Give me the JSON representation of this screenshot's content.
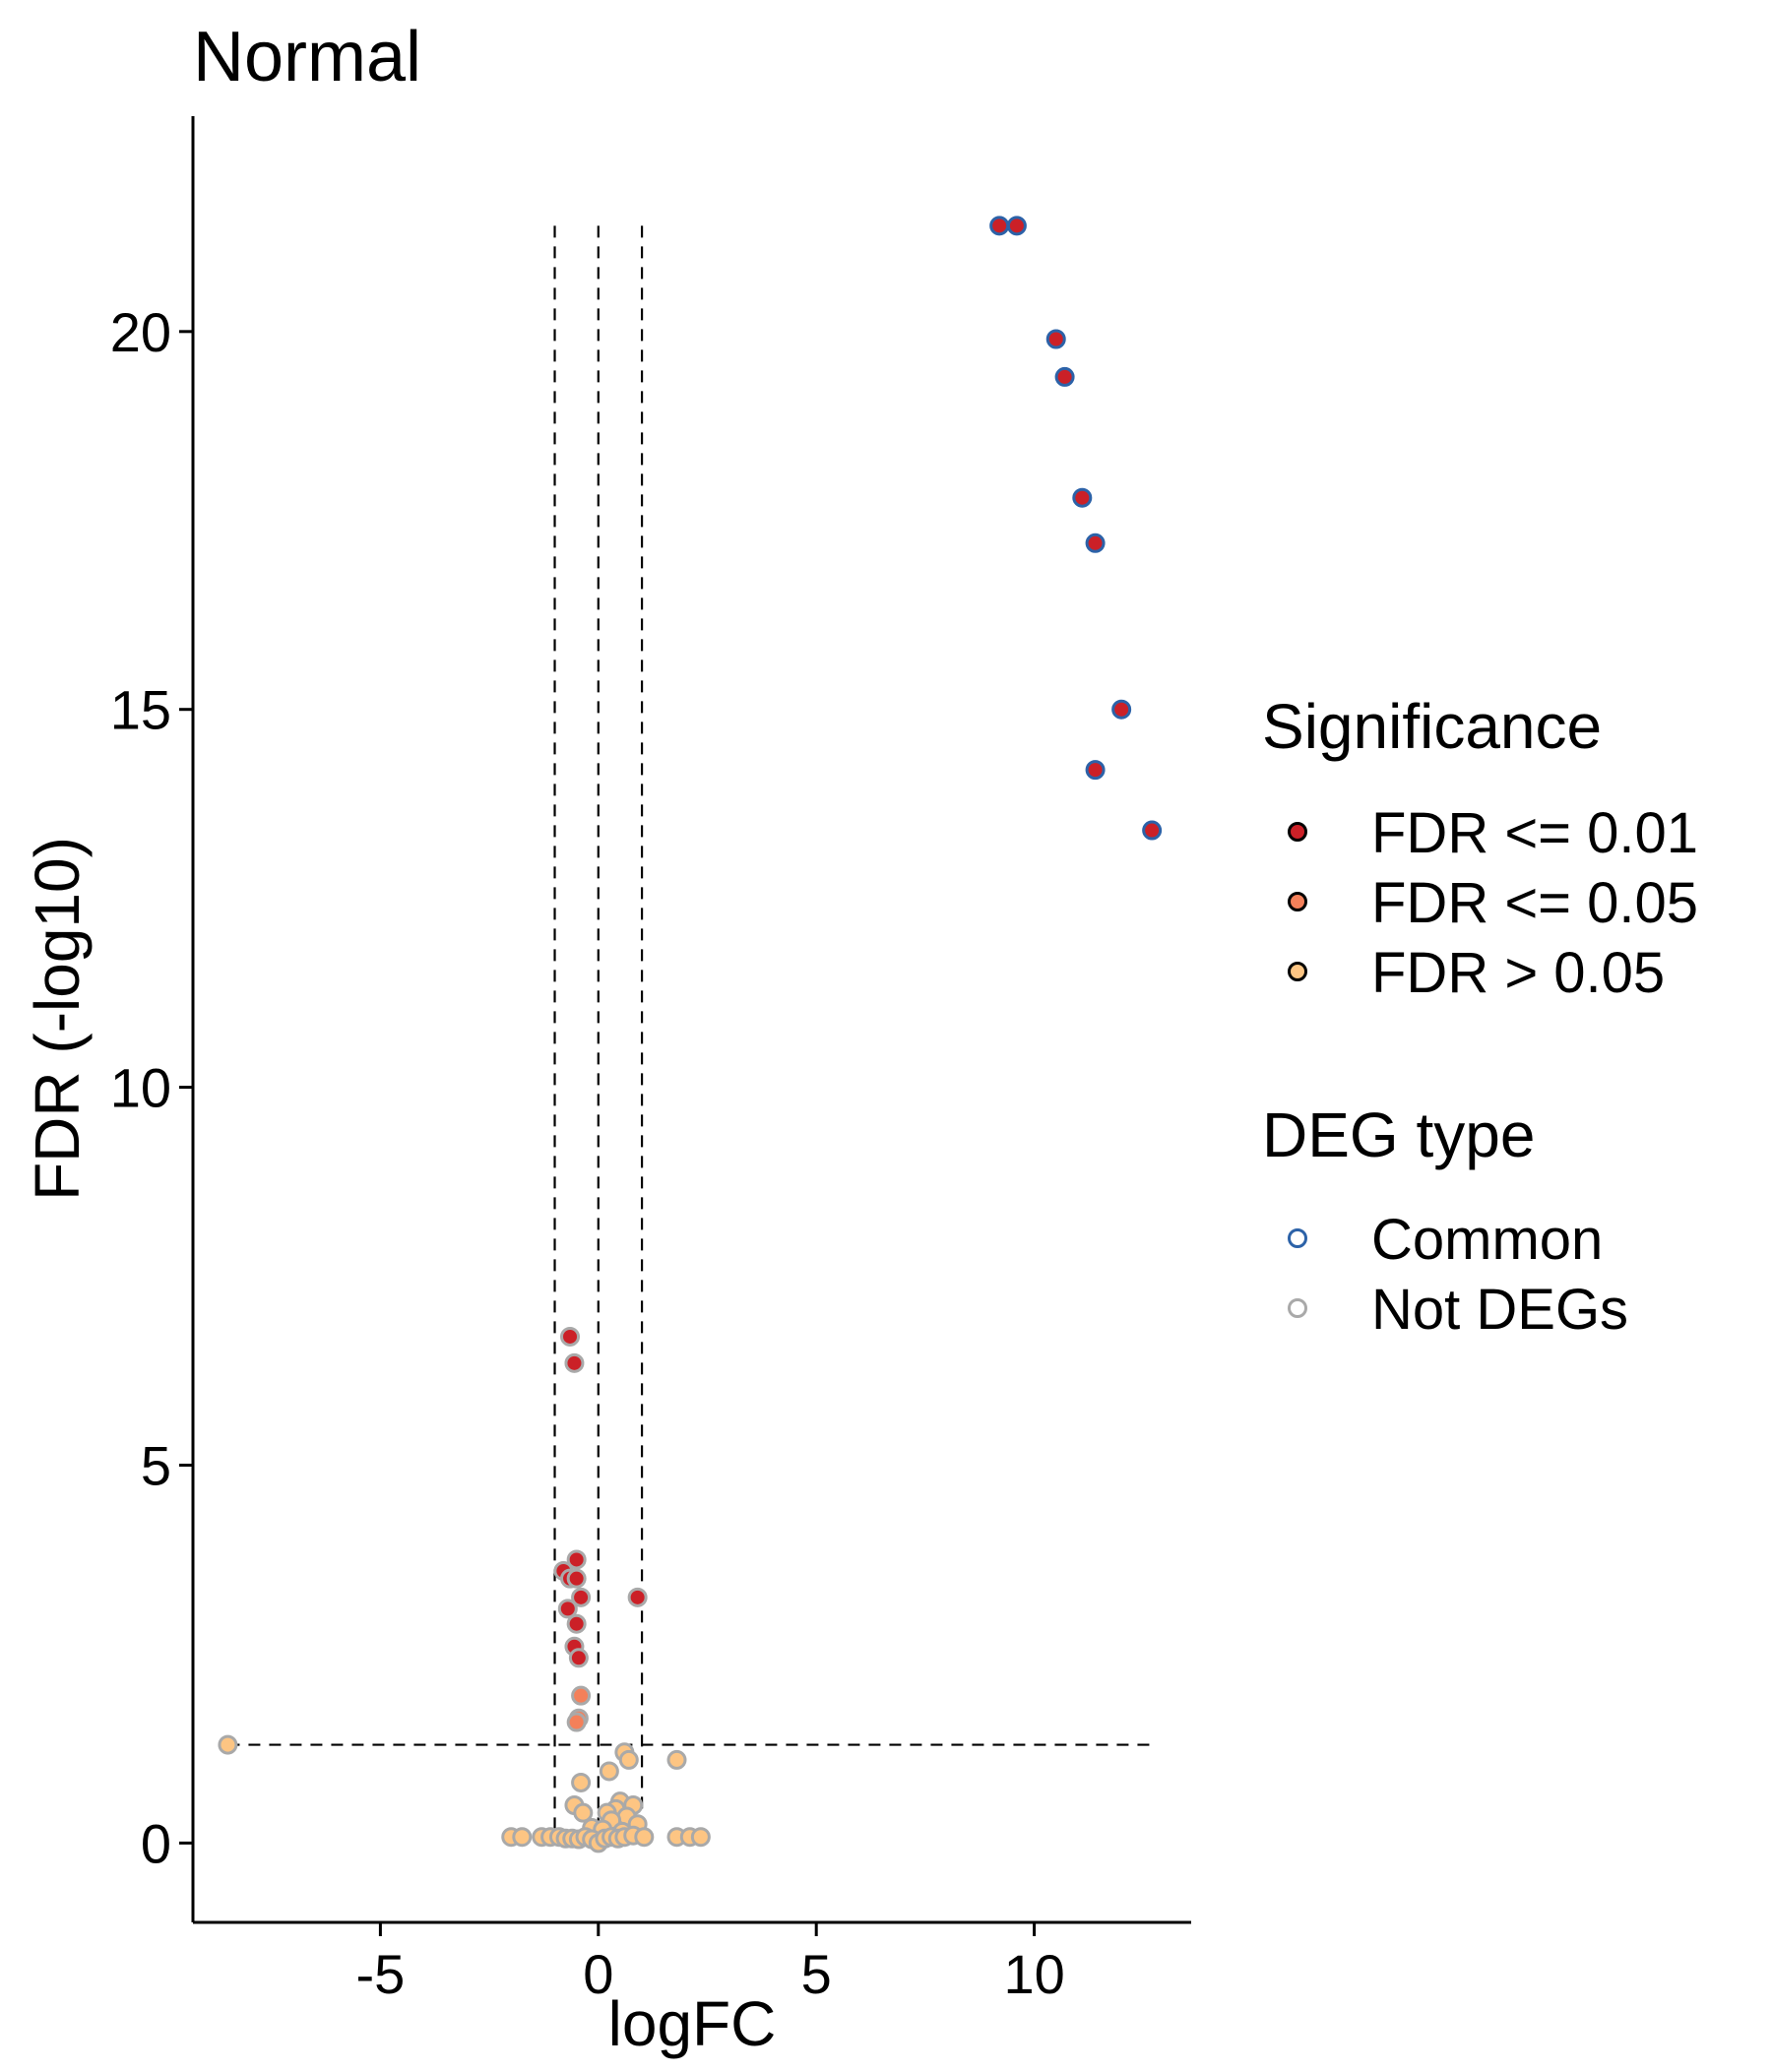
{
  "chart_data": {
    "type": "scatter",
    "title": "Normal",
    "xlabel": "logFC",
    "ylabel": "FDR (-log10)",
    "xlim": [
      -9.3,
      13.6
    ],
    "ylim": [
      -1.05,
      22.85
    ],
    "x_ticks": [
      -5,
      0,
      5,
      10
    ],
    "y_ticks": [
      0,
      5,
      10,
      15,
      20
    ],
    "x_tick_labels": [
      "-5",
      "0",
      "5",
      "10"
    ],
    "y_tick_labels": [
      "0",
      "5",
      "10",
      "15",
      "20"
    ],
    "grid": false,
    "reference_lines": {
      "vertical_x": [
        -1,
        0,
        1
      ],
      "vertical_y_range": [
        0,
        21.4
      ],
      "horizontal_y": 1.3,
      "horizontal_x_range": [
        -8.5,
        12.7
      ]
    },
    "colors": {
      "FDR <= 0.01": "#cb2027",
      "FDR <= 0.05": "#f4805a",
      "FDR > 0.05": "#fdc583",
      "Common": "#2c62a8",
      "Not DEGs": "#a9a9a9"
    },
    "legends": [
      {
        "title": "Significance",
        "position": "right",
        "entries": [
          {
            "label": "FDR <= 0.01",
            "fill": "#cb2027",
            "stroke": "#000000"
          },
          {
            "label": "FDR <= 0.05",
            "fill": "#f4805a",
            "stroke": "#000000"
          },
          {
            "label": "FDR > 0.05",
            "fill": "#fdc583",
            "stroke": "#000000"
          }
        ]
      },
      {
        "title": "DEG type",
        "position": "right",
        "entries": [
          {
            "label": "Common",
            "fill": "none",
            "stroke": "#2c62a8"
          },
          {
            "label": "Not DEGs",
            "fill": "none",
            "stroke": "#a9a9a9"
          }
        ]
      }
    ],
    "points": [
      {
        "x": 9.2,
        "y": 21.4,
        "sig": "FDR <= 0.01",
        "deg": "Common"
      },
      {
        "x": 9.6,
        "y": 21.4,
        "sig": "FDR <= 0.01",
        "deg": "Common"
      },
      {
        "x": 10.5,
        "y": 19.9,
        "sig": "FDR <= 0.01",
        "deg": "Common"
      },
      {
        "x": 10.7,
        "y": 19.4,
        "sig": "FDR <= 0.01",
        "deg": "Common"
      },
      {
        "x": 11.1,
        "y": 17.8,
        "sig": "FDR <= 0.01",
        "deg": "Common"
      },
      {
        "x": 11.4,
        "y": 17.2,
        "sig": "FDR <= 0.01",
        "deg": "Common"
      },
      {
        "x": 12.0,
        "y": 15.0,
        "sig": "FDR <= 0.01",
        "deg": "Common"
      },
      {
        "x": 11.4,
        "y": 14.2,
        "sig": "FDR <= 0.01",
        "deg": "Common"
      },
      {
        "x": 12.7,
        "y": 13.4,
        "sig": "FDR <= 0.01",
        "deg": "Common"
      },
      {
        "x": -0.65,
        "y": 6.7,
        "sig": "FDR <= 0.01",
        "deg": "Not DEGs"
      },
      {
        "x": -0.55,
        "y": 6.35,
        "sig": "FDR <= 0.01",
        "deg": "Not DEGs"
      },
      {
        "x": -0.5,
        "y": 3.75,
        "sig": "FDR <= 0.01",
        "deg": "Not DEGs"
      },
      {
        "x": -0.8,
        "y": 3.6,
        "sig": "FDR <= 0.01",
        "deg": "Not DEGs"
      },
      {
        "x": -0.65,
        "y": 3.5,
        "sig": "FDR <= 0.01",
        "deg": "Not DEGs"
      },
      {
        "x": -0.5,
        "y": 3.5,
        "sig": "FDR <= 0.01",
        "deg": "Not DEGs"
      },
      {
        "x": -0.4,
        "y": 3.25,
        "sig": "FDR <= 0.01",
        "deg": "Not DEGs"
      },
      {
        "x": 0.9,
        "y": 3.25,
        "sig": "FDR <= 0.01",
        "deg": "Not DEGs"
      },
      {
        "x": -0.7,
        "y": 3.1,
        "sig": "FDR <= 0.01",
        "deg": "Not DEGs"
      },
      {
        "x": -0.5,
        "y": 2.9,
        "sig": "FDR <= 0.01",
        "deg": "Not DEGs"
      },
      {
        "x": -0.55,
        "y": 2.6,
        "sig": "FDR <= 0.01",
        "deg": "Not DEGs"
      },
      {
        "x": -0.45,
        "y": 2.45,
        "sig": "FDR <= 0.01",
        "deg": "Not DEGs"
      },
      {
        "x": -0.4,
        "y": 1.95,
        "sig": "FDR <= 0.05",
        "deg": "Not DEGs"
      },
      {
        "x": -0.45,
        "y": 1.65,
        "sig": "FDR <= 0.05",
        "deg": "Not DEGs"
      },
      {
        "x": -0.5,
        "y": 1.6,
        "sig": "FDR <= 0.05",
        "deg": "Not DEGs"
      },
      {
        "x": -8.5,
        "y": 1.3,
        "sig": "FDR > 0.05",
        "deg": "Not DEGs"
      },
      {
        "x": 0.6,
        "y": 1.2,
        "sig": "FDR > 0.05",
        "deg": "Not DEGs"
      },
      {
        "x": 0.7,
        "y": 1.1,
        "sig": "FDR > 0.05",
        "deg": "Not DEGs"
      },
      {
        "x": 1.8,
        "y": 1.1,
        "sig": "FDR > 0.05",
        "deg": "Not DEGs"
      },
      {
        "x": 0.25,
        "y": 0.95,
        "sig": "FDR > 0.05",
        "deg": "Not DEGs"
      },
      {
        "x": -0.4,
        "y": 0.8,
        "sig": "FDR > 0.05",
        "deg": "Not DEGs"
      },
      {
        "x": -0.55,
        "y": 0.5,
        "sig": "FDR > 0.05",
        "deg": "Not DEGs"
      },
      {
        "x": 0.5,
        "y": 0.55,
        "sig": "FDR > 0.05",
        "deg": "Not DEGs"
      },
      {
        "x": 0.8,
        "y": 0.5,
        "sig": "FDR > 0.05",
        "deg": "Not DEGs"
      },
      {
        "x": 0.4,
        "y": 0.45,
        "sig": "FDR > 0.05",
        "deg": "Not DEGs"
      },
      {
        "x": -0.35,
        "y": 0.4,
        "sig": "FDR > 0.05",
        "deg": "Not DEGs"
      },
      {
        "x": 0.2,
        "y": 0.4,
        "sig": "FDR > 0.05",
        "deg": "Not DEGs"
      },
      {
        "x": 0.65,
        "y": 0.35,
        "sig": "FDR > 0.05",
        "deg": "Not DEGs"
      },
      {
        "x": 0.3,
        "y": 0.3,
        "sig": "FDR > 0.05",
        "deg": "Not DEGs"
      },
      {
        "x": 0.9,
        "y": 0.25,
        "sig": "FDR > 0.05",
        "deg": "Not DEGs"
      },
      {
        "x": -0.15,
        "y": 0.2,
        "sig": "FDR > 0.05",
        "deg": "Not DEGs"
      },
      {
        "x": 0.1,
        "y": 0.18,
        "sig": "FDR > 0.05",
        "deg": "Not DEGs"
      },
      {
        "x": 0.55,
        "y": 0.15,
        "sig": "FDR > 0.05",
        "deg": "Not DEGs"
      },
      {
        "x": -2.0,
        "y": 0.08,
        "sig": "FDR > 0.05",
        "deg": "Not DEGs"
      },
      {
        "x": -1.75,
        "y": 0.08,
        "sig": "FDR > 0.05",
        "deg": "Not DEGs"
      },
      {
        "x": -1.3,
        "y": 0.08,
        "sig": "FDR > 0.05",
        "deg": "Not DEGs"
      },
      {
        "x": -1.1,
        "y": 0.08,
        "sig": "FDR > 0.05",
        "deg": "Not DEGs"
      },
      {
        "x": -0.9,
        "y": 0.08,
        "sig": "FDR > 0.05",
        "deg": "Not DEGs"
      },
      {
        "x": -0.75,
        "y": 0.06,
        "sig": "FDR > 0.05",
        "deg": "Not DEGs"
      },
      {
        "x": -0.6,
        "y": 0.06,
        "sig": "FDR > 0.05",
        "deg": "Not DEGs"
      },
      {
        "x": -0.45,
        "y": 0.05,
        "sig": "FDR > 0.05",
        "deg": "Not DEGs"
      },
      {
        "x": -0.3,
        "y": 0.08,
        "sig": "FDR > 0.05",
        "deg": "Not DEGs"
      },
      {
        "x": -0.15,
        "y": 0.05,
        "sig": "FDR > 0.05",
        "deg": "Not DEGs"
      },
      {
        "x": 0.0,
        "y": 0.0,
        "sig": "FDR > 0.05",
        "deg": "Not DEGs"
      },
      {
        "x": 0.15,
        "y": 0.06,
        "sig": "FDR > 0.05",
        "deg": "Not DEGs"
      },
      {
        "x": 0.3,
        "y": 0.08,
        "sig": "FDR > 0.05",
        "deg": "Not DEGs"
      },
      {
        "x": 0.45,
        "y": 0.06,
        "sig": "FDR > 0.05",
        "deg": "Not DEGs"
      },
      {
        "x": 0.6,
        "y": 0.08,
        "sig": "FDR > 0.05",
        "deg": "Not DEGs"
      },
      {
        "x": 0.8,
        "y": 0.1,
        "sig": "FDR > 0.05",
        "deg": "Not DEGs"
      },
      {
        "x": 1.05,
        "y": 0.08,
        "sig": "FDR > 0.05",
        "deg": "Not DEGs"
      },
      {
        "x": 1.8,
        "y": 0.08,
        "sig": "FDR > 0.05",
        "deg": "Not DEGs"
      },
      {
        "x": 2.1,
        "y": 0.08,
        "sig": "FDR > 0.05",
        "deg": "Not DEGs"
      },
      {
        "x": 2.35,
        "y": 0.08,
        "sig": "FDR > 0.05",
        "deg": "Not DEGs"
      }
    ]
  }
}
